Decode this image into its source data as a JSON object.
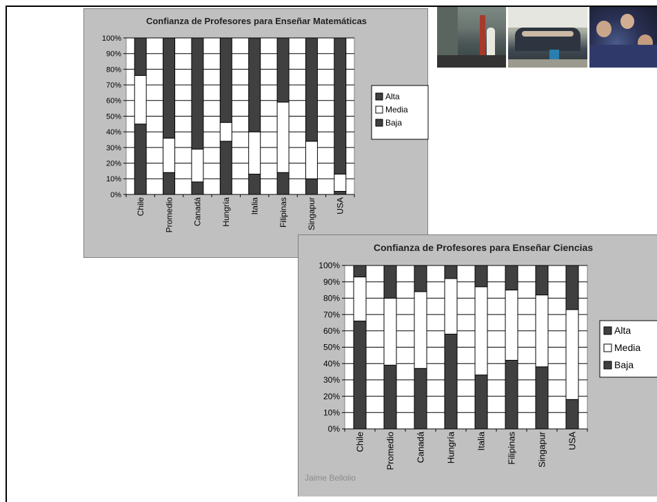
{
  "colors": {
    "alta": "#404040",
    "media": "#ffffff",
    "baja": "#404040",
    "panel": "#c0c0c0"
  },
  "watermark": "Jaime Bellolio",
  "photos": [
    "school-building-photo",
    "student-group-photo",
    "classroom-students-photo"
  ],
  "chart_data": [
    {
      "type": "bar",
      "stacked": true,
      "title": "Confianza de Profesores para Enseñar  Matemáticas",
      "categories": [
        "Chile",
        "Promedio",
        "Canadá",
        "Hungría",
        "Italia",
        "Filipinas",
        "Singapur",
        "USA"
      ],
      "yticks": [
        "0%",
        "10%",
        "20%",
        "30%",
        "40%",
        "50%",
        "60%",
        "70%",
        "80%",
        "90%",
        "100%"
      ],
      "ylim": [
        0,
        100
      ],
      "grid": true,
      "legend_position": "right",
      "legend": [
        "Alta",
        "Media",
        "Baja"
      ],
      "series": [
        {
          "name": "Baja",
          "values": [
            45,
            14,
            8,
            34,
            13,
            14,
            10,
            2
          ]
        },
        {
          "name": "Media",
          "values": [
            31,
            22,
            21,
            12,
            27,
            45,
            24,
            11
          ]
        },
        {
          "name": "Alta",
          "values": [
            24,
            64,
            71,
            54,
            60,
            41,
            66,
            87
          ]
        }
      ]
    },
    {
      "type": "bar",
      "stacked": true,
      "title": "Confianza de Profesores para Enseñar Ciencias",
      "categories": [
        "Chile",
        "Promedio",
        "Canadá",
        "Hungría",
        "Italia",
        "Filipinas",
        "Singapur",
        "USA"
      ],
      "yticks": [
        "0%",
        "10%",
        "20%",
        "30%",
        "40%",
        "50%",
        "60%",
        "70%",
        "80%",
        "90%",
        "100%"
      ],
      "ylim": [
        0,
        100
      ],
      "grid": true,
      "legend_position": "right",
      "legend": [
        "Alta",
        "Media",
        "Baja"
      ],
      "series": [
        {
          "name": "Baja",
          "values": [
            66,
            39,
            37,
            58,
            33,
            42,
            38,
            18
          ]
        },
        {
          "name": "Media",
          "values": [
            27,
            41,
            47,
            34,
            54,
            43,
            44,
            55
          ]
        },
        {
          "name": "Alta",
          "values": [
            7,
            20,
            16,
            8,
            13,
            15,
            18,
            27
          ]
        }
      ]
    }
  ]
}
